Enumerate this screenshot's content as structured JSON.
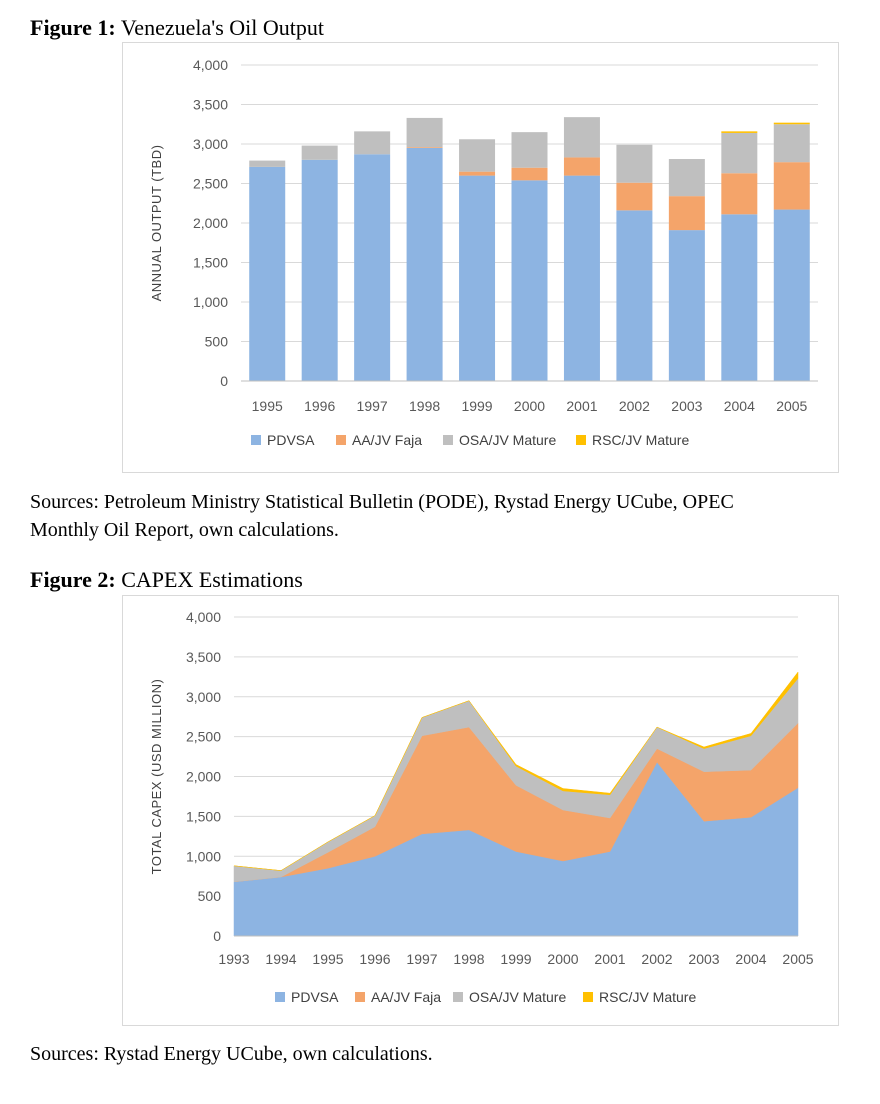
{
  "figures": [
    {
      "label": "Figure 1:",
      "title": "Venezuela's Oil Output",
      "sources": [
        "Sources: Petroleum Ministry Statistical Bulletin (PODE), Rystad Energy UCube, OPEC",
        "Monthly Oil Report, own calculations."
      ]
    },
    {
      "label": "Figure 2:",
      "title": "CAPEX Estimations",
      "sources": [
        "Sources: Rystad Energy UCube, own calculations."
      ]
    }
  ],
  "colors": {
    "PDVSA": "#8db4e2",
    "AA/JV Faja": "#f4a46a",
    "OSA/JV Mature": "#bfbfbf",
    "RSC/JV Mature": "#ffc000"
  },
  "chart_data": [
    {
      "type": "bar",
      "stacked": true,
      "title": "Venezuela's Oil Output",
      "xlabel": "",
      "ylabel": "ANNUAL OUTPUT (TBD)",
      "ylim": [
        0,
        4000
      ],
      "yticks": [
        0,
        500,
        1000,
        1500,
        2000,
        2500,
        3000,
        3500,
        4000
      ],
      "ytick_labels": [
        "0",
        "500",
        "1,000",
        "1,500",
        "2,000",
        "2,500",
        "3,000",
        "3,500",
        "4,000"
      ],
      "grid": true,
      "legend_position": "bottom",
      "categories": [
        "1995",
        "1996",
        "1997",
        "1998",
        "1999",
        "2000",
        "2001",
        "2002",
        "2003",
        "2004",
        "2005"
      ],
      "series": [
        {
          "name": "PDVSA",
          "values": [
            2710,
            2800,
            2870,
            2950,
            2600,
            2540,
            2600,
            2160,
            1910,
            2110,
            2170
          ]
        },
        {
          "name": "AA/JV Faja",
          "values": [
            0,
            0,
            0,
            10,
            50,
            160,
            230,
            350,
            430,
            520,
            600
          ]
        },
        {
          "name": "OSA/JV Mature",
          "values": [
            80,
            180,
            290,
            370,
            410,
            450,
            510,
            480,
            470,
            510,
            480
          ]
        },
        {
          "name": "RSC/JV Mature",
          "values": [
            0,
            0,
            0,
            0,
            0,
            0,
            0,
            0,
            0,
            20,
            20
          ]
        }
      ]
    },
    {
      "type": "area",
      "stacked": true,
      "title": "CAPEX Estimations",
      "xlabel": "",
      "ylabel": "TOTAL CAPEX (USD MILLION)",
      "ylim": [
        0,
        4000
      ],
      "yticks": [
        0,
        500,
        1000,
        1500,
        2000,
        2500,
        3000,
        3500,
        4000
      ],
      "ytick_labels": [
        "0",
        "500",
        "1,000",
        "1,500",
        "2,000",
        "2,500",
        "3,000",
        "3,500",
        "4,000"
      ],
      "grid": true,
      "legend_position": "bottom",
      "x": [
        "1993",
        "1994",
        "1995",
        "1996",
        "1997",
        "1998",
        "1999",
        "2000",
        "2001",
        "2002",
        "2003",
        "2004",
        "2005"
      ],
      "series": [
        {
          "name": "PDVSA",
          "values": [
            680,
            740,
            850,
            1000,
            1280,
            1330,
            1060,
            940,
            1060,
            2180,
            1440,
            1490,
            1860
          ]
        },
        {
          "name": "AA/JV Faja",
          "values": [
            0,
            0,
            200,
            370,
            1230,
            1290,
            830,
            640,
            420,
            170,
            620,
            590,
            810
          ]
        },
        {
          "name": "OSA/JV Mature",
          "values": [
            200,
            80,
            130,
            140,
            230,
            330,
            240,
            240,
            290,
            270,
            290,
            430,
            560
          ]
        },
        {
          "name": "RSC/JV Mature",
          "values": [
            0,
            0,
            0,
            0,
            0,
            0,
            20,
            30,
            20,
            0,
            20,
            30,
            80
          ]
        }
      ]
    }
  ]
}
